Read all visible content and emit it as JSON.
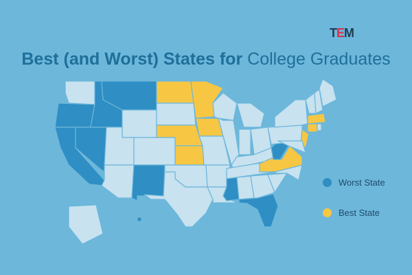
{
  "logo": {
    "t": "T",
    "e": "E",
    "m": "M"
  },
  "title": {
    "bold": "Best (and Worst) States for",
    "regular": "College Graduates"
  },
  "legend": [
    {
      "label": "Worst State",
      "color": "#2f8ec3"
    },
    {
      "label": "Best State",
      "color": "#f7c744"
    }
  ],
  "colors": {
    "base": "#c8e2ef",
    "worst": "#2f8ec3",
    "best": "#f7c744"
  },
  "worst_states": [
    "WA-no",
    "OR",
    "CA",
    "NV",
    "ID",
    "MT",
    "NM",
    "MS",
    "FL",
    "WV",
    "HI"
  ],
  "best_states": [
    "ND",
    "MN",
    "NE",
    "IA",
    "KS",
    "VA",
    "NJ",
    "MA",
    "CT"
  ]
}
